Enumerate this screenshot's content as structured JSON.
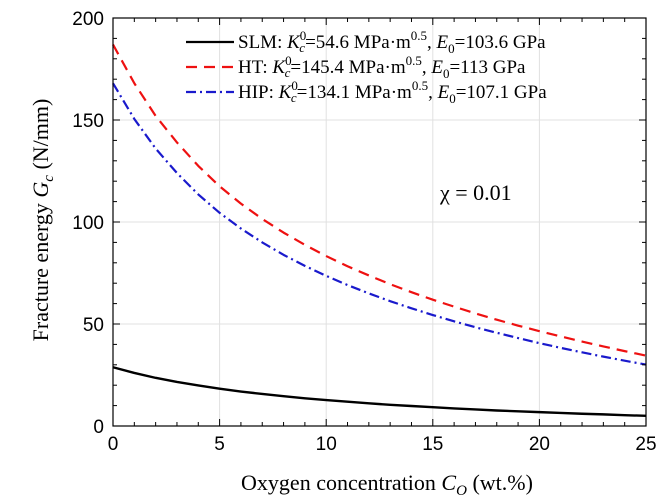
{
  "chart_data": {
    "type": "line",
    "xlabel": "Oxygen concentration C_O (wt.%)",
    "xlabel_parts": {
      "main": "Oxygen concentration ",
      "sym": "C",
      "sub": "O",
      "tail": " (wt.%)"
    },
    "ylabel": "Fracture energy G_c (N/mm)",
    "ylabel_parts": {
      "main": "Fracture energy ",
      "sym": "G",
      "sub": "c",
      "tail": " (N/mm)"
    },
    "xlim": [
      0,
      25
    ],
    "ylim": [
      0,
      200
    ],
    "xticks": [
      0,
      5,
      10,
      15,
      20,
      25
    ],
    "yticks": [
      0,
      50,
      100,
      150,
      200
    ],
    "grid": true,
    "legend_position": "top-right",
    "annotation": {
      "label": "χ = 0.01"
    },
    "x": [
      0,
      1,
      2,
      3,
      4,
      5,
      6,
      7,
      8,
      9,
      10,
      11,
      12,
      13,
      14,
      15,
      16,
      17,
      18,
      19,
      20,
      21,
      22,
      23,
      24,
      25
    ],
    "series": [
      {
        "name": "SLM: K_c^0=54.6 MPa·m^0.5, E_0=103.6 GPa",
        "legend": {
          "prefix": "SLM: ",
          "k": "=54.6 MPa·m",
          "e": "=103.6 GPa"
        },
        "color": "#000000",
        "dash": "solid",
        "values": [
          28.8,
          26.0,
          23.6,
          21.6,
          19.9,
          18.3,
          16.9,
          15.7,
          14.6,
          13.6,
          12.7,
          11.9,
          11.1,
          10.4,
          9.8,
          9.2,
          8.6,
          8.1,
          7.6,
          7.2,
          6.8,
          6.4,
          6.0,
          5.7,
          5.3,
          5.0
        ]
      },
      {
        "name": "HT: K_c^0=145.4 MPa·m^0.5, E_0=113 GPa",
        "legend": {
          "prefix": "HT: ",
          "k": "=145.4 MPa·m",
          "e": "=113 GPa"
        },
        "color": "#ee1111",
        "dash": "dashed",
        "values": [
          187.0,
          168.0,
          152.0,
          139.0,
          127.5,
          117.5,
          109.0,
          101.5,
          94.8,
          88.8,
          83.3,
          78.3,
          73.8,
          69.5,
          65.6,
          61.9,
          58.5,
          55.2,
          52.1,
          49.2,
          46.5,
          43.9,
          41.4,
          39.0,
          36.7,
          34.5
        ]
      },
      {
        "name": "HIP: K_c^0=134.1 MPa·m^0.5, E_0=107.1 GPa",
        "legend": {
          "prefix": "HIP: ",
          "k": "=134.1 MPa·m",
          "e": "=107.1 GPa"
        },
        "color": "#1a1acc",
        "dash": "dashdot",
        "values": [
          168.0,
          150.5,
          136.0,
          124.0,
          113.5,
          104.5,
          96.8,
          90.0,
          83.9,
          78.5,
          73.6,
          69.1,
          65.0,
          61.2,
          57.7,
          54.4,
          51.3,
          48.4,
          45.7,
          43.1,
          40.6,
          38.3,
          36.1,
          34.0,
          32.0,
          30.1
        ]
      }
    ]
  }
}
